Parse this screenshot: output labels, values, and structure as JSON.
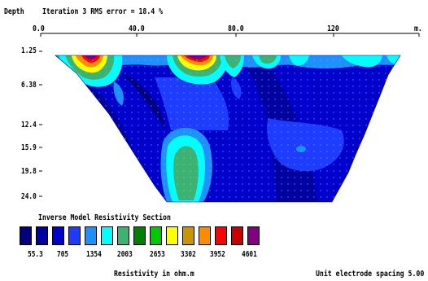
{
  "header": {
    "depth_label": "Depth",
    "title": "Iteration 3 RMS error = 18.4 %"
  },
  "x_axis": {
    "ticks": [
      "0.0",
      "40.0",
      "80.0",
      "120"
    ],
    "unit": "m."
  },
  "depth_axis": {
    "ticks": [
      "1.25",
      "6.38",
      "12.4",
      "15.9",
      "19.8",
      "24.0"
    ]
  },
  "section_title": "Inverse Model Resistivity Section",
  "legend": {
    "colors": [
      "#000080",
      "#0000a0",
      "#0000cd",
      "#1e3cff",
      "#1e90ff",
      "#00ffff",
      "#3cb371",
      "#008000",
      "#00c800",
      "#ffff00",
      "#c89600",
      "#ff8c00",
      "#ff0000",
      "#c80000",
      "#800080"
    ],
    "values": [
      "55.3",
      "705",
      "1354",
      "2003",
      "2653",
      "3302",
      "3952",
      "4601"
    ],
    "unit_label": "Resistivity in ohm.m"
  },
  "footer": {
    "spacing_label": "Unit electrode spacing 5.00 m."
  }
}
